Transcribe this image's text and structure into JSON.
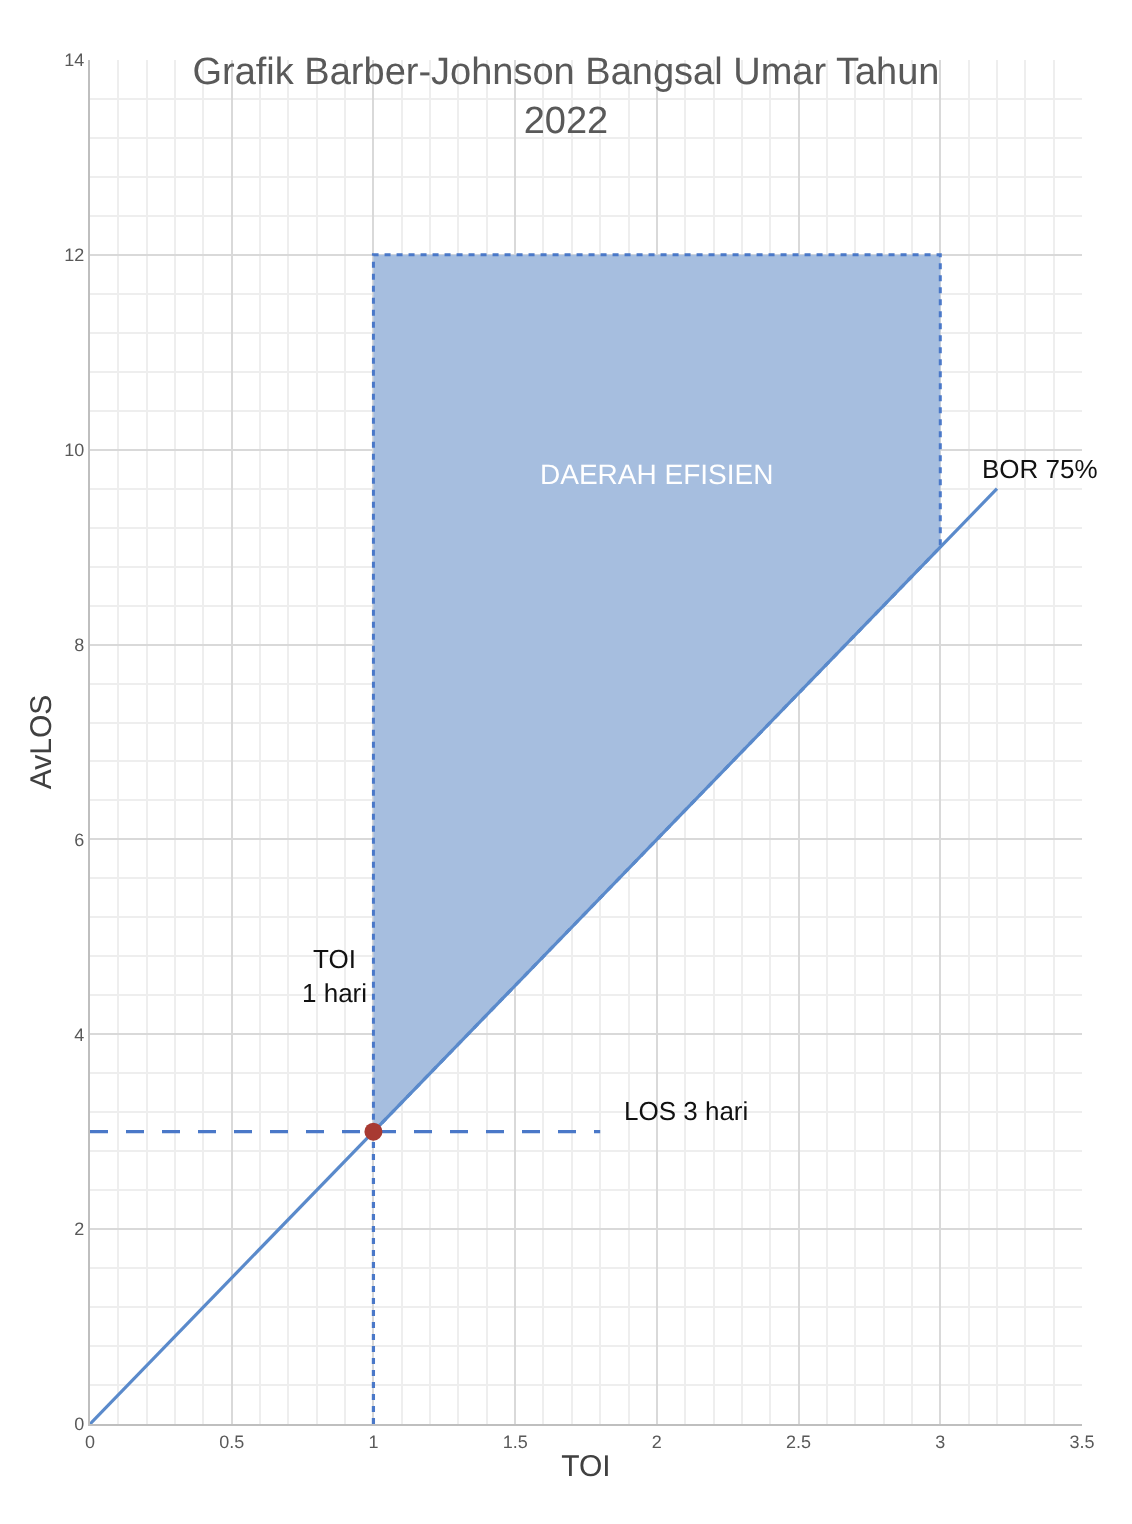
{
  "chart_data": {
    "type": "line",
    "title": "Grafik Barber-Johnson Bangsal Umar Tahun\n2022",
    "xlabel": "TOI",
    "ylabel": "AvLOS",
    "series": [
      {
        "type": "area",
        "color": "#a6bedf",
        "x": [
          1,
          1,
          3,
          3,
          1
        ],
        "values": [
          3,
          12,
          12,
          9,
          3
        ],
        "line_style": "dotted"
      },
      {
        "color": "#5a8acb",
        "x": [
          0,
          3.2
        ],
        "values": [
          0,
          9.6
        ],
        "line_style": "solid"
      },
      {
        "color": "#4a78c8",
        "x": [
          0,
          1.8
        ],
        "values": [
          3,
          3
        ],
        "line_style": "dashed"
      },
      {
        "color": "#4a78c8",
        "x": [
          1,
          1
        ],
        "values": [
          0,
          3
        ],
        "line_style": "dotted"
      },
      {
        "type": "scatter",
        "color": "#a83a32",
        "x": [
          1
        ],
        "values": [
          3
        ],
        "marker": "circle"
      }
    ],
    "annotations": [
      "DAERAH EFISIEN",
      "BOR 75%",
      "TOI\n1 hari",
      "LOS 3 hari"
    ],
    "xlim": [
      0,
      3.5
    ],
    "xticks": [
      0,
      0.5,
      1,
      1.5,
      2,
      2.5,
      3,
      3.5
    ],
    "ylim": [
      0,
      14
    ],
    "yticks": [
      0,
      2,
      4,
      6,
      8,
      10,
      12,
      14
    ],
    "grid": true
  }
}
